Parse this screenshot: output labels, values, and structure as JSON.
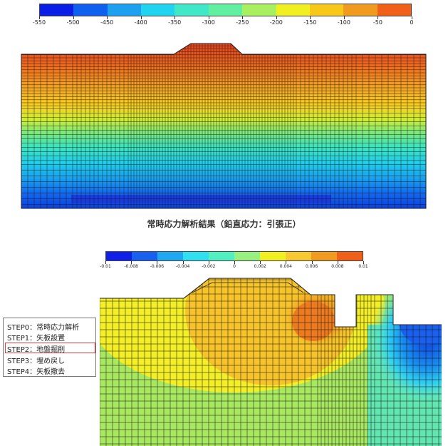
{
  "legend1": {
    "ticks": [
      "-550",
      "-500",
      "-450",
      "-400",
      "-350",
      "-300",
      "-250",
      "-200",
      "-150",
      "-100",
      "-50",
      "0"
    ],
    "colors": [
      "#0a1ee6",
      "#1060f0",
      "#1ea0f0",
      "#20d4f0",
      "#40e8c8",
      "#60f0a0",
      "#a8f060",
      "#f0f020",
      "#f8c818",
      "#f09a20",
      "#f06018"
    ]
  },
  "caption": "常時応力解析結果（鉛直応力：引張正）",
  "legend2": {
    "ticks": [
      "-0.01",
      "-0.008",
      "-0.006",
      "-0.004",
      "-0.002",
      "0",
      "0.002",
      "0.004",
      "0.006",
      "0.008",
      "0.01"
    ],
    "colors": [
      "#1020e8",
      "#1860f0",
      "#20a8f0",
      "#30e0f0",
      "#50f0c0",
      "#98f080",
      "#f0f020",
      "#f8c830",
      "#f09a20",
      "#f06018"
    ]
  },
  "steps": {
    "items": [
      "STEP0：常時応力解析",
      "STEP1：矢板設置",
      "STEP2：地盤掘削",
      "STEP3：埋め戻し",
      "STEP4：矢板撤去"
    ],
    "selected_index": 2
  }
}
